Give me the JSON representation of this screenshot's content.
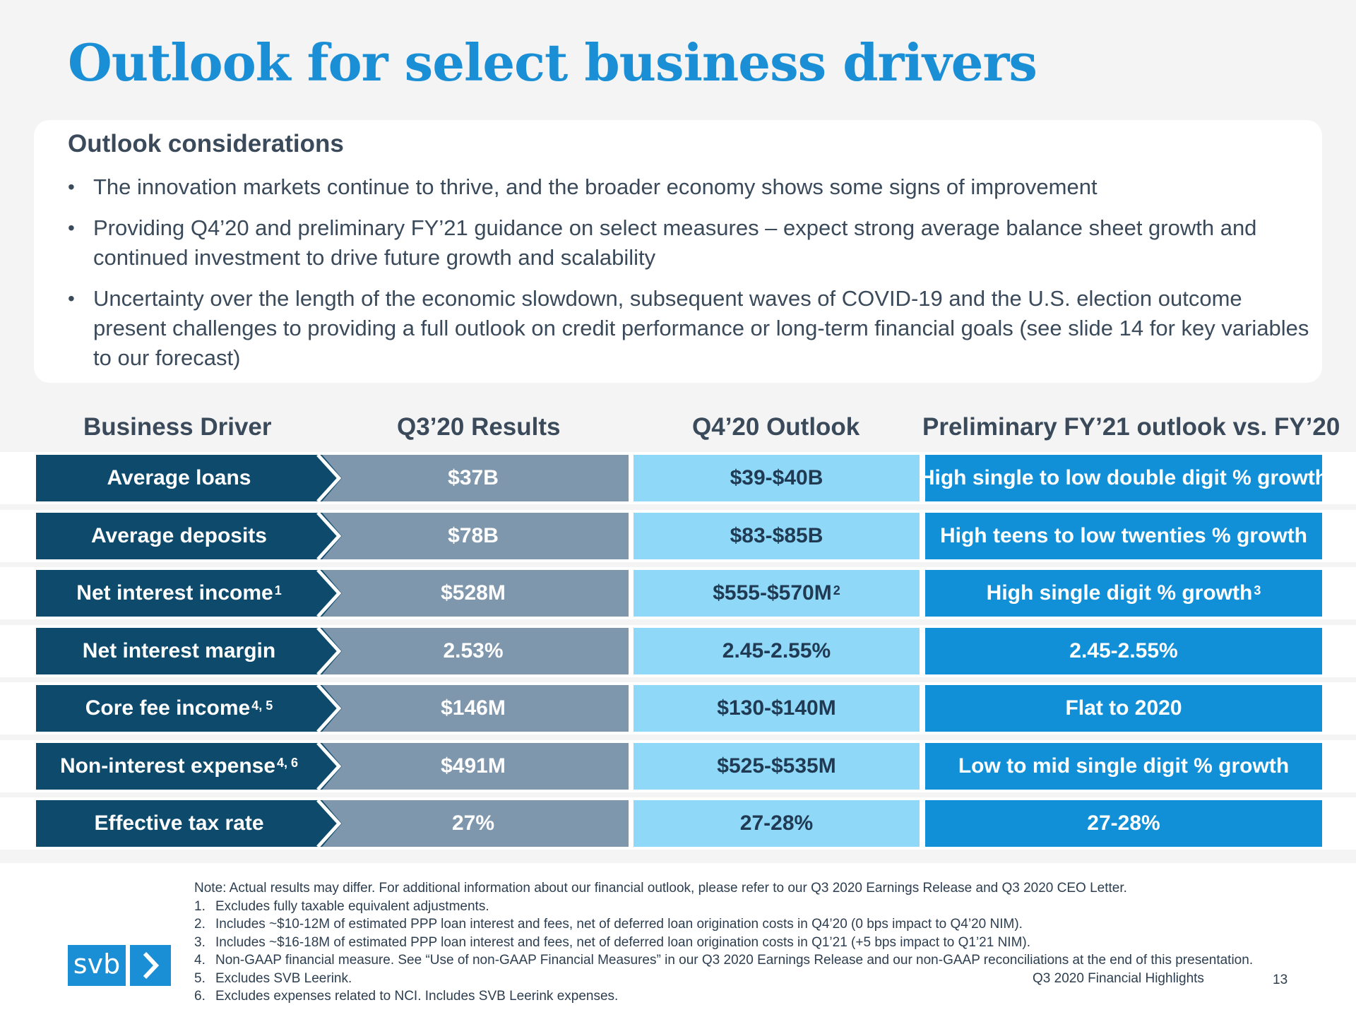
{
  "title": "Outlook for select business drivers",
  "considerations": {
    "heading": "Outlook considerations",
    "bullets": [
      "The innovation markets continue to thrive, and the broader economy shows some signs of improvement",
      "Providing Q4’20 and preliminary FY’21 guidance on select measures – expect strong average balance sheet growth and continued investment to drive future growth and scalability",
      "Uncertainty over the length of the economic slowdown, subsequent waves of COVID-19 and the U.S. election outcome present challenges to providing a full outlook on credit performance or long-term financial goals (see slide 14 for key variables to our forecast)"
    ]
  },
  "table": {
    "headers": {
      "driver": "Business Driver",
      "q3": "Q3’20 Results",
      "q4": "Q4’20 Outlook",
      "fy": "Preliminary FY’21 outlook vs. FY’20"
    },
    "rows": [
      {
        "driver": "Average loans",
        "driver_sup": "",
        "q3": "$37B",
        "q4": "$39-$40B",
        "q4_sup": "",
        "fy": "High single to low double digit % growth",
        "fy_sup": ""
      },
      {
        "driver": "Average deposits",
        "driver_sup": "",
        "q3": "$78B",
        "q4": "$83-$85B",
        "q4_sup": "",
        "fy": "High teens to low twenties % growth",
        "fy_sup": ""
      },
      {
        "driver": "Net interest income",
        "driver_sup": "1",
        "q3": "$528M",
        "q4": "$555-$570M",
        "q4_sup": "2",
        "fy": "High single digit % growth",
        "fy_sup": "3"
      },
      {
        "driver": "Net interest margin",
        "driver_sup": "",
        "q3": "2.53%",
        "q4": "2.45-2.55%",
        "q4_sup": "",
        "fy": "2.45-2.55%",
        "fy_sup": ""
      },
      {
        "driver": "Core fee income",
        "driver_sup": "4, 5",
        "q3": "$146M",
        "q4": "$130-$140M",
        "q4_sup": "",
        "fy": "Flat to 2020",
        "fy_sup": ""
      },
      {
        "driver": "Non-interest expense",
        "driver_sup": "4, 6",
        "q3": "$491M",
        "q4": "$525-$535M",
        "q4_sup": "",
        "fy": "Low to mid single digit % growth",
        "fy_sup": ""
      },
      {
        "driver": "Effective tax rate",
        "driver_sup": "",
        "q3": "27%",
        "q4": "27-28%",
        "q4_sup": "",
        "fy": "27-28%",
        "fy_sup": ""
      }
    ]
  },
  "footnotes": {
    "note": "Note: Actual results may differ. For additional information about our financial outlook, please refer to our Q3 2020 Earnings Release and Q3 2020 CEO Letter.",
    "items": [
      {
        "num": "1.",
        "text": "Excludes fully taxable equivalent adjustments."
      },
      {
        "num": "2.",
        "text": "Includes ~$10-12M of estimated PPP loan interest and fees, net of deferred loan origination costs in Q4’20 (0 bps impact to Q4’20 NIM)."
      },
      {
        "num": "3.",
        "text": "Includes ~$16-18M of estimated PPP loan interest and fees, net of deferred loan origination costs in Q1’21 (+5 bps impact to Q1’21 NIM)."
      },
      {
        "num": "4.",
        "text": "Non-GAAP financial measure. See “Use of non-GAAP Financial Measures” in our Q3 2020 Earnings Release and our non-GAAP reconciliations at the end of this presentation."
      },
      {
        "num": "5.",
        "text": "Excludes SVB Leerink."
      },
      {
        "num": "6.",
        "text": "Excludes expenses related to NCI. Includes SVB Leerink expenses."
      }
    ]
  },
  "footer": {
    "logo_text": "svb",
    "logo_icon": "chevron-right-icon",
    "page_label": "Q3 2020 Financial Highlights",
    "page_number": "13"
  },
  "colors": {
    "title": "#1b8fd6",
    "driver_bg": "#0d4a6b",
    "q3_bg": "#7f97ad",
    "q4_bg": "#8fd8f8",
    "fy_bg": "#1190d8"
  }
}
